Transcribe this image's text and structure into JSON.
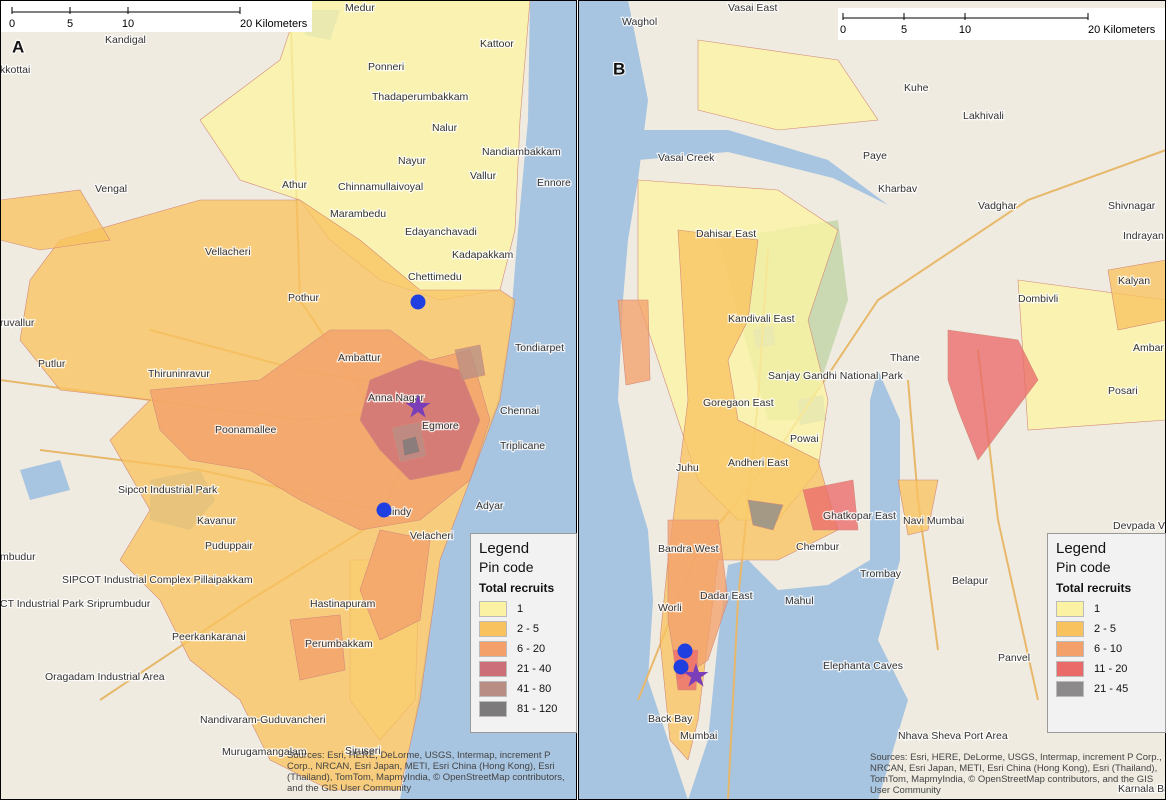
{
  "panels": [
    {
      "label": "A",
      "scale_labels": [
        "0",
        "5",
        "10",
        "20 Kilometers"
      ],
      "places": [
        "Kandigal",
        "Medur",
        "kkottai",
        "Kattoor",
        "Ponneri",
        "Thadaperumbakkam",
        "Nalur",
        "Nandiambakkam",
        "Nayur",
        "Chinnamullaivoyal",
        "Vallur",
        "Ennore",
        "Athur",
        "Vengal",
        "Marambedu",
        "Edayanchavadi",
        "Kadapakkam",
        "Chettimedu",
        "Vellacheri",
        "Pothur",
        "ruvallur",
        "Tondiarpet",
        "Putlur",
        "Thiruninravur",
        "Ambattur",
        "Anna Nagar",
        "Chennai",
        "Egmore",
        "Triplicane",
        "Poonamallee",
        "Guindy",
        "Adyar",
        "Sipcot Industrial Park",
        "Kavanur",
        "Velacheri",
        "Puduppair",
        "SIPCOT Industrial Complex Pillaipakkam",
        "mbudur",
        "CT Industrial Park Sriprumbudur",
        "Hastinapuram",
        "Peerkankaranai",
        "Perumbakkam",
        "Oragadam Industrial Area",
        "Nandivaram-Guduvancheri",
        "Siruseri",
        "Murugamangalam"
      ],
      "legend": {
        "title": "Legend",
        "subtitle": "Pin code",
        "heading": "Total recruits",
        "items": [
          {
            "label": "1",
            "color": "#fbf3a3"
          },
          {
            "label": "2 - 5",
            "color": "#f8c35f"
          },
          {
            "label": "6 - 20",
            "color": "#f4a06b"
          },
          {
            "label": "21 - 40",
            "color": "#cd6f79"
          },
          {
            "label": "41 - 80",
            "color": "#b88e84"
          },
          {
            "label": "81 - 120",
            "color": "#7c7a7a"
          }
        ]
      },
      "sources": "Sources: Esri, HERE, DeLorme, USGS, Intermap, increment P Corp., NRCAN, Esri Japan, METI, Esri China (Hong Kong), Esri (Thailand), TomTom, MapmyIndia, © OpenStreetMap contributors, and the GIS User Community"
    },
    {
      "label": "B",
      "scale_labels": [
        "0",
        "5",
        "10",
        "20 Kilometers"
      ],
      "places": [
        "Waghol",
        "Vasai East",
        "Vasai Creek",
        "Kuhe",
        "Lakhivali",
        "Paye",
        "Kharbav",
        "Vadghar",
        "Shivnagar",
        "Indrayan Agar",
        "Dahisar East",
        "Dombivli",
        "Kalyan",
        "Kandivali East",
        "Thane",
        "Ambar",
        "Sanjay Gandhi National Park",
        "Goregaon East",
        "Posari",
        "Powai",
        "Andheri East",
        "Juhu",
        "Ghatkopar East",
        "Navi Mumbai",
        "Bandra West",
        "Chembur",
        "Trombay",
        "Devpada Village",
        "Belapur",
        "Dadar East",
        "Mahul",
        "Worli",
        "Panvel",
        "Elephanta Caves",
        "Back Bay",
        "Mumbai",
        "Nhava Sheva Port Area",
        "Karnala Bird"
      ],
      "legend": {
        "title": "Legend",
        "subtitle": "Pin code",
        "heading": "Total recruits",
        "items": [
          {
            "label": "1",
            "color": "#fbf3a3"
          },
          {
            "label": "2 - 5",
            "color": "#f8c35f"
          },
          {
            "label": "6 - 10",
            "color": "#f4a06b"
          },
          {
            "label": "11 - 20",
            "color": "#ea6a6a"
          },
          {
            "label": "21 - 45",
            "color": "#8c8a8a"
          }
        ]
      },
      "sources": "Sources: Esri, HERE, DeLorme, USGS, Intermap, increment P Corp., NRCAN, Esri Japan, METI, Esri China (Hong Kong), Esri (Thailand), TomTom, MapmyIndia, © OpenStreetMap contributors, and the GIS User Community"
    }
  ]
}
